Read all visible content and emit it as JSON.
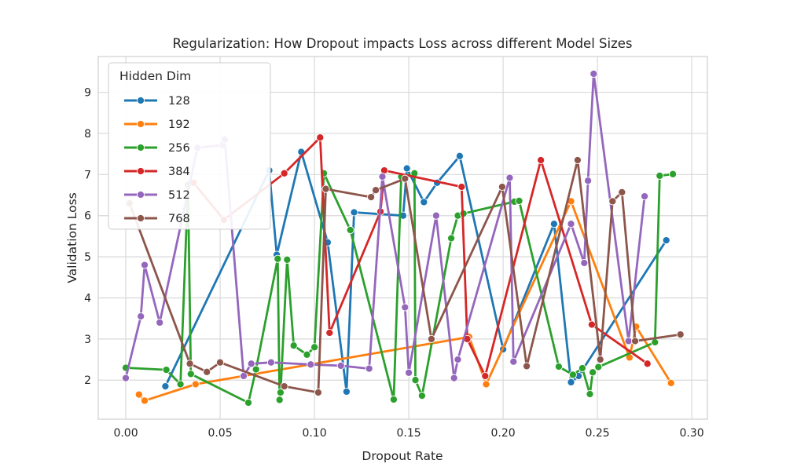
{
  "title": "Regularization: How Dropout impacts Loss across different Model Sizes",
  "axes": {
    "xlabel": "Dropout Rate",
    "ylabel": "Validation Loss",
    "x_tick_labels": [
      "0.00",
      "0.05",
      "0.10",
      "0.15",
      "0.20",
      "0.25",
      "0.30"
    ],
    "x_tick_values": [
      0.0,
      0.05,
      0.1,
      0.15,
      0.2,
      0.25,
      0.3
    ],
    "y_tick_labels": [
      "2",
      "3",
      "4",
      "5",
      "6",
      "7",
      "8",
      "9"
    ],
    "y_tick_values": [
      2,
      3,
      4,
      5,
      6,
      7,
      8,
      9
    ],
    "grid": true,
    "spine_color": "#d5d5d5",
    "grid_color": "#d9d9d9"
  },
  "legend": {
    "title": "Hidden Dim",
    "position": "upper left",
    "entries": [
      {
        "label": "128",
        "color": "#1f77b4"
      },
      {
        "label": "192",
        "color": "#ff7f0e"
      },
      {
        "label": "256",
        "color": "#2ca02c"
      },
      {
        "label": "384",
        "color": "#d62728"
      },
      {
        "label": "512",
        "color": "#9467bd"
      },
      {
        "label": "768",
        "color": "#8c564b"
      }
    ]
  },
  "chart_data": {
    "type": "line",
    "title": "Regularization: How Dropout impacts Loss across different Model Sizes",
    "xlabel": "Dropout Rate",
    "ylabel": "Validation Loss",
    "xlim": [
      -0.0146,
      0.3083
    ],
    "ylim": [
      1.05,
      9.87
    ],
    "legend_title": "Hidden Dim",
    "series": [
      {
        "name": "128",
        "color": "#1f77b4",
        "points": [
          [
            0.021,
            1.85
          ],
          [
            0.076,
            7.1
          ],
          [
            0.08,
            5.05
          ],
          [
            0.093,
            7.55
          ],
          [
            0.107,
            5.35
          ],
          [
            0.117,
            1.72
          ],
          [
            0.121,
            6.08
          ],
          [
            0.147,
            6.0
          ],
          [
            0.149,
            7.15
          ],
          [
            0.158,
            6.33
          ],
          [
            0.165,
            6.8
          ],
          [
            0.177,
            7.45
          ],
          [
            0.2,
            2.75
          ],
          [
            0.227,
            5.8
          ],
          [
            0.236,
            1.95
          ],
          [
            0.24,
            2.1
          ],
          [
            0.2865,
            5.4
          ]
        ]
      },
      {
        "name": "192",
        "color": "#ff7f0e",
        "points": [
          [
            0.007,
            1.65
          ],
          [
            0.01,
            1.5
          ],
          [
            0.037,
            1.9
          ],
          [
            0.182,
            3.05
          ],
          [
            0.191,
            1.9
          ],
          [
            0.236,
            6.35
          ],
          [
            0.267,
            2.55
          ],
          [
            0.2705,
            3.3
          ],
          [
            0.289,
            1.93
          ]
        ]
      },
      {
        "name": "256",
        "color": "#2ca02c",
        "points": [
          [
            0.0,
            2.3
          ],
          [
            0.0215,
            2.25
          ],
          [
            0.029,
            1.9
          ],
          [
            0.033,
            6.75
          ],
          [
            0.0345,
            2.15
          ],
          [
            0.065,
            1.45
          ],
          [
            0.069,
            2.26
          ],
          [
            0.0805,
            4.95
          ],
          [
            0.0815,
            1.52
          ],
          [
            0.082,
            1.7
          ],
          [
            0.0855,
            4.93
          ],
          [
            0.089,
            2.84
          ],
          [
            0.096,
            2.62
          ],
          [
            0.1,
            2.8
          ],
          [
            0.105,
            7.03
          ],
          [
            0.119,
            5.65
          ],
          [
            0.142,
            1.53
          ],
          [
            0.146,
            6.95
          ],
          [
            0.153,
            7.03
          ],
          [
            0.1535,
            2.0
          ],
          [
            0.157,
            1.62
          ],
          [
            0.1725,
            5.45
          ],
          [
            0.176,
            6.0
          ],
          [
            0.179,
            6.05
          ],
          [
            0.206,
            6.34
          ],
          [
            0.2085,
            6.36
          ],
          [
            0.2295,
            2.33
          ],
          [
            0.237,
            2.13
          ],
          [
            0.242,
            2.29
          ],
          [
            0.246,
            1.66
          ],
          [
            0.2475,
            2.19
          ],
          [
            0.2505,
            2.32
          ],
          [
            0.2805,
            2.92
          ],
          [
            0.283,
            6.97
          ],
          [
            0.29,
            7.01
          ]
        ]
      },
      {
        "name": "384",
        "color": "#d62728",
        "points": [
          [
            0.036,
            6.8
          ],
          [
            0.052,
            5.9
          ],
          [
            0.084,
            7.03
          ],
          [
            0.103,
            7.9
          ],
          [
            0.108,
            3.15
          ],
          [
            0.135,
            6.1
          ],
          [
            0.137,
            7.1
          ],
          [
            0.178,
            6.7
          ],
          [
            0.181,
            3.0
          ],
          [
            0.1905,
            2.1
          ],
          [
            0.22,
            7.35
          ],
          [
            0.247,
            3.35
          ],
          [
            0.2765,
            2.4
          ]
        ]
      },
      {
        "name": "512",
        "color": "#9467bd",
        "points": [
          [
            0.0,
            2.05
          ],
          [
            0.008,
            3.55
          ],
          [
            0.01,
            4.8
          ],
          [
            0.018,
            3.4
          ],
          [
            0.038,
            7.65
          ],
          [
            0.0515,
            7.72
          ],
          [
            0.0525,
            7.85
          ],
          [
            0.0625,
            2.1
          ],
          [
            0.0665,
            2.4
          ],
          [
            0.077,
            2.43
          ],
          [
            0.098,
            2.38
          ],
          [
            0.114,
            2.35
          ],
          [
            0.129,
            2.28
          ],
          [
            0.136,
            6.95
          ],
          [
            0.148,
            3.77
          ],
          [
            0.15,
            2.18
          ],
          [
            0.1645,
            6.0
          ],
          [
            0.174,
            2.05
          ],
          [
            0.176,
            2.5
          ],
          [
            0.2035,
            6.92
          ],
          [
            0.2055,
            2.45
          ],
          [
            0.236,
            5.8
          ],
          [
            0.243,
            4.85
          ],
          [
            0.245,
            6.85
          ],
          [
            0.248,
            9.45
          ],
          [
            0.2665,
            2.95
          ],
          [
            0.275,
            6.47
          ]
        ]
      },
      {
        "name": "768",
        "color": "#8c564b",
        "points": [
          [
            0.002,
            6.3
          ],
          [
            0.034,
            2.4
          ],
          [
            0.043,
            2.2
          ],
          [
            0.05,
            2.43
          ],
          [
            0.084,
            1.85
          ],
          [
            0.102,
            1.7
          ],
          [
            0.106,
            6.65
          ],
          [
            0.13,
            6.45
          ],
          [
            0.1325,
            6.62
          ],
          [
            0.148,
            6.9
          ],
          [
            0.162,
            3.0
          ],
          [
            0.1995,
            6.7
          ],
          [
            0.2125,
            2.34
          ],
          [
            0.2395,
            7.35
          ],
          [
            0.2515,
            2.5
          ],
          [
            0.258,
            6.35
          ],
          [
            0.263,
            6.57
          ],
          [
            0.27,
            2.95
          ],
          [
            0.294,
            3.11
          ]
        ]
      }
    ]
  }
}
